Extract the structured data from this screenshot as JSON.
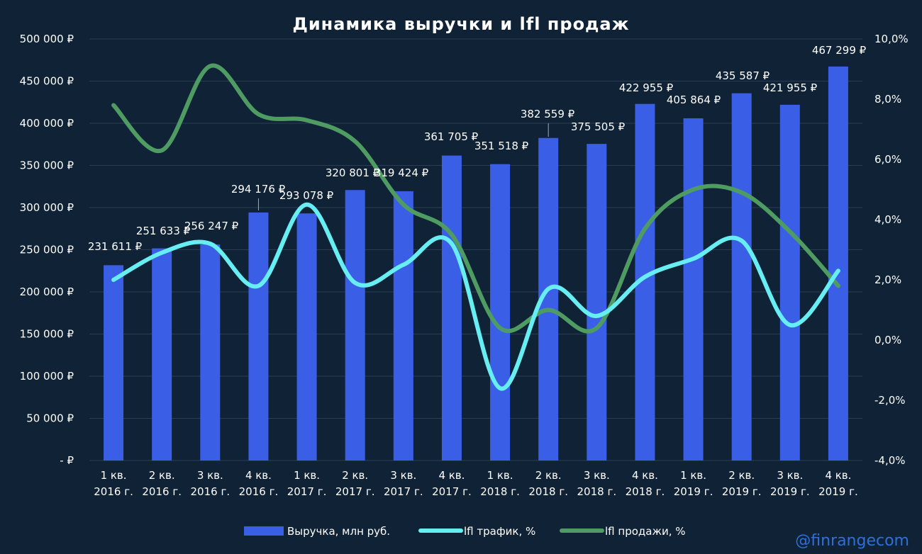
{
  "chart_data": {
    "type": "bar",
    "title": "Динамика выручки и lfl продаж",
    "categories": [
      [
        "1 кв.",
        "2016 г."
      ],
      [
        "2 кв.",
        "2016 г."
      ],
      [
        "3 кв.",
        "2016 г."
      ],
      [
        "4 кв.",
        "2016 г."
      ],
      [
        "1 кв.",
        "2017 г."
      ],
      [
        "2 кв.",
        "2017 г."
      ],
      [
        "3 кв.",
        "2017 г."
      ],
      [
        "4 кв.",
        "2017 г."
      ],
      [
        "1 кв.",
        "2018 г."
      ],
      [
        "2 кв.",
        "2018 г."
      ],
      [
        "3 кв.",
        "2018 г."
      ],
      [
        "4 кв.",
        "2018 г."
      ],
      [
        "1 кв.",
        "2019 г."
      ],
      [
        "2 кв.",
        "2019 г."
      ],
      [
        "3 кв.",
        "2019 г."
      ],
      [
        "4 кв.",
        "2019 г."
      ]
    ],
    "y_left": {
      "ylim": [
        0,
        500000
      ],
      "ticks": [
        "-  ₽",
        "50 000 ₽",
        "100 000 ₽",
        "150 000 ₽",
        "200 000 ₽",
        "250 000 ₽",
        "300 000 ₽",
        "350 000 ₽",
        "400 000 ₽",
        "450 000 ₽",
        "500 000 ₽"
      ]
    },
    "y_right": {
      "ylim": [
        -4.0,
        10.0
      ],
      "ticks": [
        "-4,0%",
        "-2,0%",
        "0,0%",
        "2,0%",
        "4,0%",
        "6,0%",
        "8,0%",
        "10,0%"
      ]
    },
    "grid": true,
    "legend_position": "bottom",
    "bars": {
      "name": "Выручка, млн руб.",
      "color": "#3a5fe6",
      "values": [
        231611,
        251633,
        256247,
        294176,
        293078,
        320801,
        319424,
        361705,
        351518,
        382559,
        375505,
        422955,
        405864,
        435587,
        421955,
        467299
      ],
      "labels": [
        "231 611 ₽",
        "251 633 ₽",
        "256 247 ₽",
        "294 176 ₽",
        "293 078 ₽",
        "320 801 ₽",
        "319 424 ₽",
        "361 705 ₽",
        "351 518 ₽",
        "382 559 ₽",
        "375 505 ₽",
        "422 955 ₽",
        "405 864 ₽",
        "435 587 ₽",
        "421 955 ₽",
        "467 299 ₽"
      ]
    },
    "series": [
      {
        "name": "lfl трафик, %",
        "axis": "right",
        "color": "#66eef2",
        "values": [
          2.0,
          2.9,
          3.2,
          1.8,
          4.5,
          1.9,
          2.5,
          3.2,
          -1.6,
          1.7,
          0.8,
          2.1,
          2.7,
          3.3,
          0.5,
          2.3
        ]
      },
      {
        "name": "lfl продажи, %",
        "axis": "right",
        "color": "#4f9c62",
        "values": [
          7.8,
          6.3,
          9.1,
          7.5,
          7.3,
          6.6,
          4.5,
          3.5,
          0.4,
          1.0,
          0.4,
          3.7,
          5.0,
          4.9,
          3.6,
          1.8
        ]
      }
    ]
  },
  "watermark": "@finrangecom"
}
